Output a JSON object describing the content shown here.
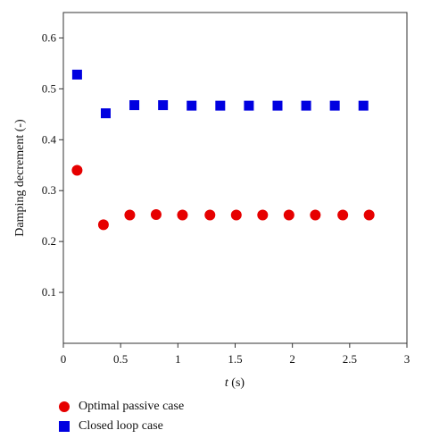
{
  "chart_data": {
    "type": "scatter",
    "xlabel_var": "t",
    "xlabel_unit": " (s)",
    "ylabel": "Damping decrement (-)",
    "xlim": [
      0,
      3
    ],
    "ylim": [
      0,
      0.65
    ],
    "xticks": [
      "0",
      "0.5",
      "1",
      "1.5",
      "2",
      "2.5",
      "3"
    ],
    "xtick_values": [
      0,
      0.5,
      1,
      1.5,
      2,
      2.5,
      3
    ],
    "yticks": [
      "0.1",
      "0.2",
      "0.3",
      "0.4",
      "0.5",
      "0.6"
    ],
    "ytick_values": [
      0.1,
      0.2,
      0.3,
      0.4,
      0.5,
      0.6
    ],
    "grid": false,
    "legend_position": "bottom-left",
    "series": [
      {
        "name": "Optimal passive case",
        "marker": "circle",
        "color": "#e60000",
        "x": [
          0.12,
          0.35,
          0.58,
          0.81,
          1.04,
          1.28,
          1.51,
          1.74,
          1.97,
          2.2,
          2.44,
          2.67
        ],
        "y": [
          0.34,
          0.233,
          0.252,
          0.253,
          0.252,
          0.252,
          0.252,
          0.252,
          0.252,
          0.252,
          0.252,
          0.252
        ]
      },
      {
        "name": "Closed loop case",
        "marker": "square",
        "color": "#0000e0",
        "x": [
          0.12,
          0.37,
          0.62,
          0.87,
          1.12,
          1.37,
          1.62,
          1.87,
          2.12,
          2.37,
          2.62
        ],
        "y": [
          0.528,
          0.452,
          0.468,
          0.468,
          0.467,
          0.467,
          0.467,
          0.467,
          0.467,
          0.467,
          0.467
        ]
      }
    ]
  }
}
